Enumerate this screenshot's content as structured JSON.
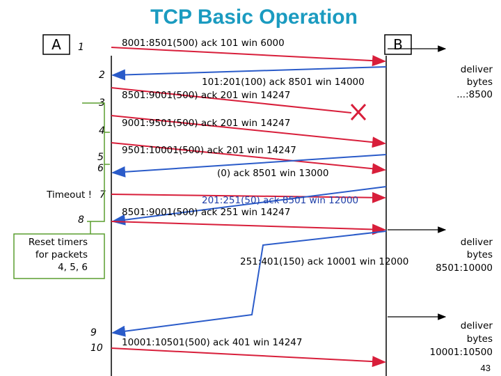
{
  "title": "TCP Basic Operation",
  "hosts": {
    "a": "A",
    "b": "B"
  },
  "steps": [
    "1",
    "2",
    "3",
    "4",
    "5",
    "6",
    "7",
    "8",
    "9",
    "10"
  ],
  "timeout": "Timeout !",
  "reset_note": [
    "Reset timers",
    "for packets",
    "4, 5, 6"
  ],
  "messages": [
    "8001:8501(500) ack 101 win 6000",
    "101:201(100) ack 8501 win 14000",
    "8501:9001(500) ack 201 win 14247",
    "9001:9501(500) ack 201 win 14247",
    "9501:10001(500) ack 201 win 14247",
    "(0) ack 8501 win 13000",
    "201:251(50) ack 8501 win 12000",
    "8501:9001(500) ack 251 win 14247",
    "251:401(150) ack 10001 win 12000",
    "10001:10501(500) ack 401 win 14247"
  ],
  "deliveries": [
    [
      "deliver",
      "bytes",
      "...:8500"
    ],
    [
      "deliver",
      "bytes",
      "8501:10000"
    ],
    [
      "deliver",
      "bytes",
      "10001:10500"
    ]
  ],
  "page_number": "43"
}
